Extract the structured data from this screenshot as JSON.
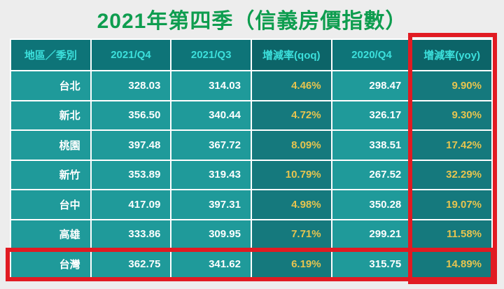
{
  "title": "2021年第四季（信義房價指數）",
  "chart_data": {
    "type": "table",
    "title": "2021年第四季（信義房價指數）",
    "columns": [
      "地區／季別",
      "2021/Q4",
      "2021/Q3",
      "增減率(qoq)",
      "2020/Q4",
      "增減率(yoy)"
    ],
    "rows": [
      [
        "台北",
        "328.03",
        "314.03",
        "4.46%",
        "298.47",
        "9.90%"
      ],
      [
        "新北",
        "356.50",
        "340.44",
        "4.72%",
        "326.17",
        "9.30%"
      ],
      [
        "桃園",
        "397.48",
        "367.72",
        "8.09%",
        "338.51",
        "17.42%"
      ],
      [
        "新竹",
        "353.89",
        "319.43",
        "10.79%",
        "267.52",
        "32.29%"
      ],
      [
        "台中",
        "417.09",
        "397.31",
        "4.98%",
        "350.28",
        "19.07%"
      ],
      [
        "高雄",
        "333.86",
        "309.95",
        "7.71%",
        "299.21",
        "11.58%"
      ],
      [
        "台灣",
        "362.75",
        "341.62",
        "6.19%",
        "315.75",
        "14.89%"
      ]
    ],
    "highlights": [
      "增減率(yoy) column outlined in red",
      "台灣 row outlined in red"
    ]
  },
  "colors": {
    "page_bg": "#ededed",
    "title_green": "#0e9d4f",
    "header_bg": "#0e7478",
    "header_bg_dark": "#0c6468",
    "header_text_cyan": "#3ce0dc",
    "cell_bg": "#1f9a9a",
    "cell_bg_dark": "#15797d",
    "value_text": "#ffffff",
    "percent_text_gold": "#e6c44f",
    "highlight_red": "#e11b22"
  }
}
